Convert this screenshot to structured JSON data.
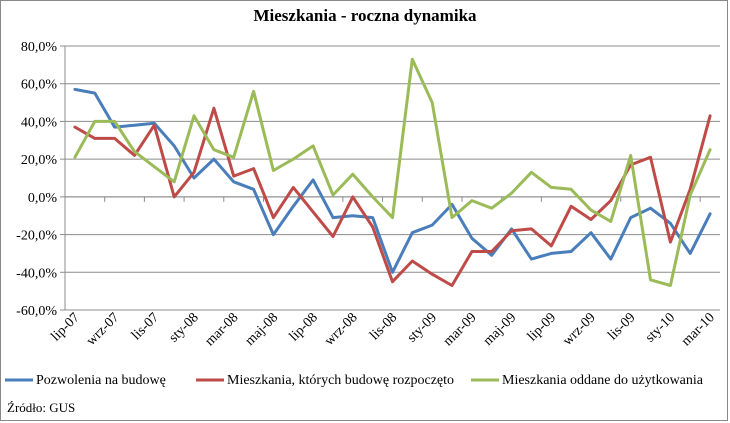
{
  "chart_data": {
    "type": "line",
    "title": "Mieszkania - roczna dynamika",
    "xlabel": "",
    "ylabel": "",
    "ylim": [
      -60,
      80
    ],
    "yticks": [
      -60,
      -40,
      -20,
      0,
      20,
      40,
      60,
      80
    ],
    "ytick_labels": [
      "-60,0%",
      "-40,0%",
      "-20,0%",
      "0,0%",
      "20,0%",
      "40,0%",
      "60,0%",
      "80,0%"
    ],
    "grid": true,
    "legend_position": "bottom",
    "categories": [
      "lip-07",
      "sie-07",
      "wrz-07",
      "paź-07",
      "lis-07",
      "gru-07",
      "sty-08",
      "lut-08",
      "mar-08",
      "kwi-08",
      "maj-08",
      "cze-08",
      "lip-08",
      "sie-08",
      "wrz-08",
      "paź-08",
      "lis-08",
      "gru-08",
      "sty-09",
      "lut-09",
      "mar-09",
      "kwi-09",
      "maj-09",
      "cze-09",
      "lip-09",
      "sie-09",
      "wrz-09",
      "paź-09",
      "lis-09",
      "gru-09",
      "sty-10",
      "lut-10",
      "mar-10"
    ],
    "tick_labels": [
      "lip-07",
      "wrz-07",
      "lis-07",
      "sty-08",
      "mar-08",
      "maj-08",
      "lip-08",
      "wrz-08",
      "lis-08",
      "sty-09",
      "mar-09",
      "maj-09",
      "lip-09",
      "wrz-09",
      "lis-09",
      "sty-10",
      "mar-10"
    ],
    "series": [
      {
        "name": "Pozwolenia na budowę",
        "color": "#4a7ebb",
        "values": [
          57,
          55,
          37,
          38,
          39,
          27,
          10,
          20,
          8,
          4,
          -20,
          -5,
          9,
          -11,
          -10,
          -11,
          -40,
          -19,
          -15,
          -4,
          -22,
          -31,
          -17,
          -33,
          -30,
          -29,
          -19,
          -33,
          -11,
          -6,
          -14,
          -30,
          -9
        ]
      },
      {
        "name": "Mieszkania, których budowę rozpoczęto",
        "color": "#be4b48",
        "values": [
          37,
          31,
          31,
          22,
          38,
          0,
          13,
          47,
          11,
          15,
          -11,
          5,
          -8,
          -21,
          0,
          -16,
          -45,
          -34,
          -41,
          -47,
          -29,
          -29,
          -18,
          -17,
          -26,
          -5,
          -12,
          -2,
          17,
          21,
          -24,
          4,
          43
        ]
      },
      {
        "name": "Mieszkania oddane do użytkowania",
        "color": "#9bbb59",
        "values": [
          21,
          40,
          40,
          24,
          16,
          8,
          43,
          25,
          21,
          56,
          14,
          20,
          27,
          1,
          12,
          0,
          -11,
          73,
          50,
          -11,
          -2,
          -6,
          2,
          13,
          5,
          4,
          -7,
          -13,
          22,
          -44,
          -47,
          1,
          25
        ]
      }
    ]
  },
  "source_note": "Źródło: GUS"
}
